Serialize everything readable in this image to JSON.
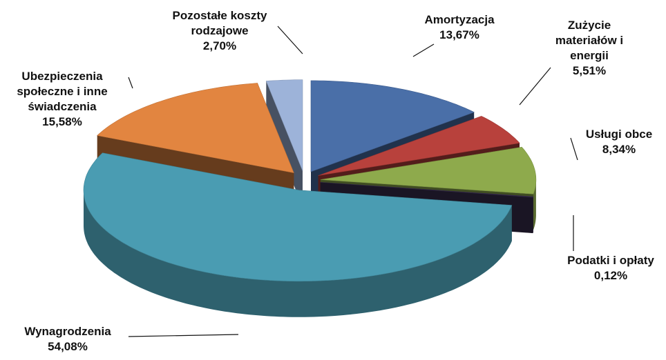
{
  "chart_data": {
    "type": "pie3d",
    "categories": [
      "Amortyzacja",
      "Zużycie materiałów i energii",
      "Usługi obce",
      "Podatki i opłaty",
      "Wynagrodzenia",
      "Ubezpieczenia społeczne i inne świadczenia",
      "Pozostałe koszty rodzajowe"
    ],
    "values": [
      13.67,
      5.51,
      8.34,
      0.12,
      54.08,
      15.58,
      2.7
    ],
    "value_labels": [
      "13,67%",
      "5,51%",
      "8,34%",
      "0,12%",
      "54,08%",
      "15,58%",
      "2,70%"
    ],
    "colors": [
      "#4a6fa8",
      "#b8413c",
      "#8eaa4c",
      "#3a2e50",
      "#4a9cb2",
      "#e28540",
      "#9db3d9"
    ]
  }
}
